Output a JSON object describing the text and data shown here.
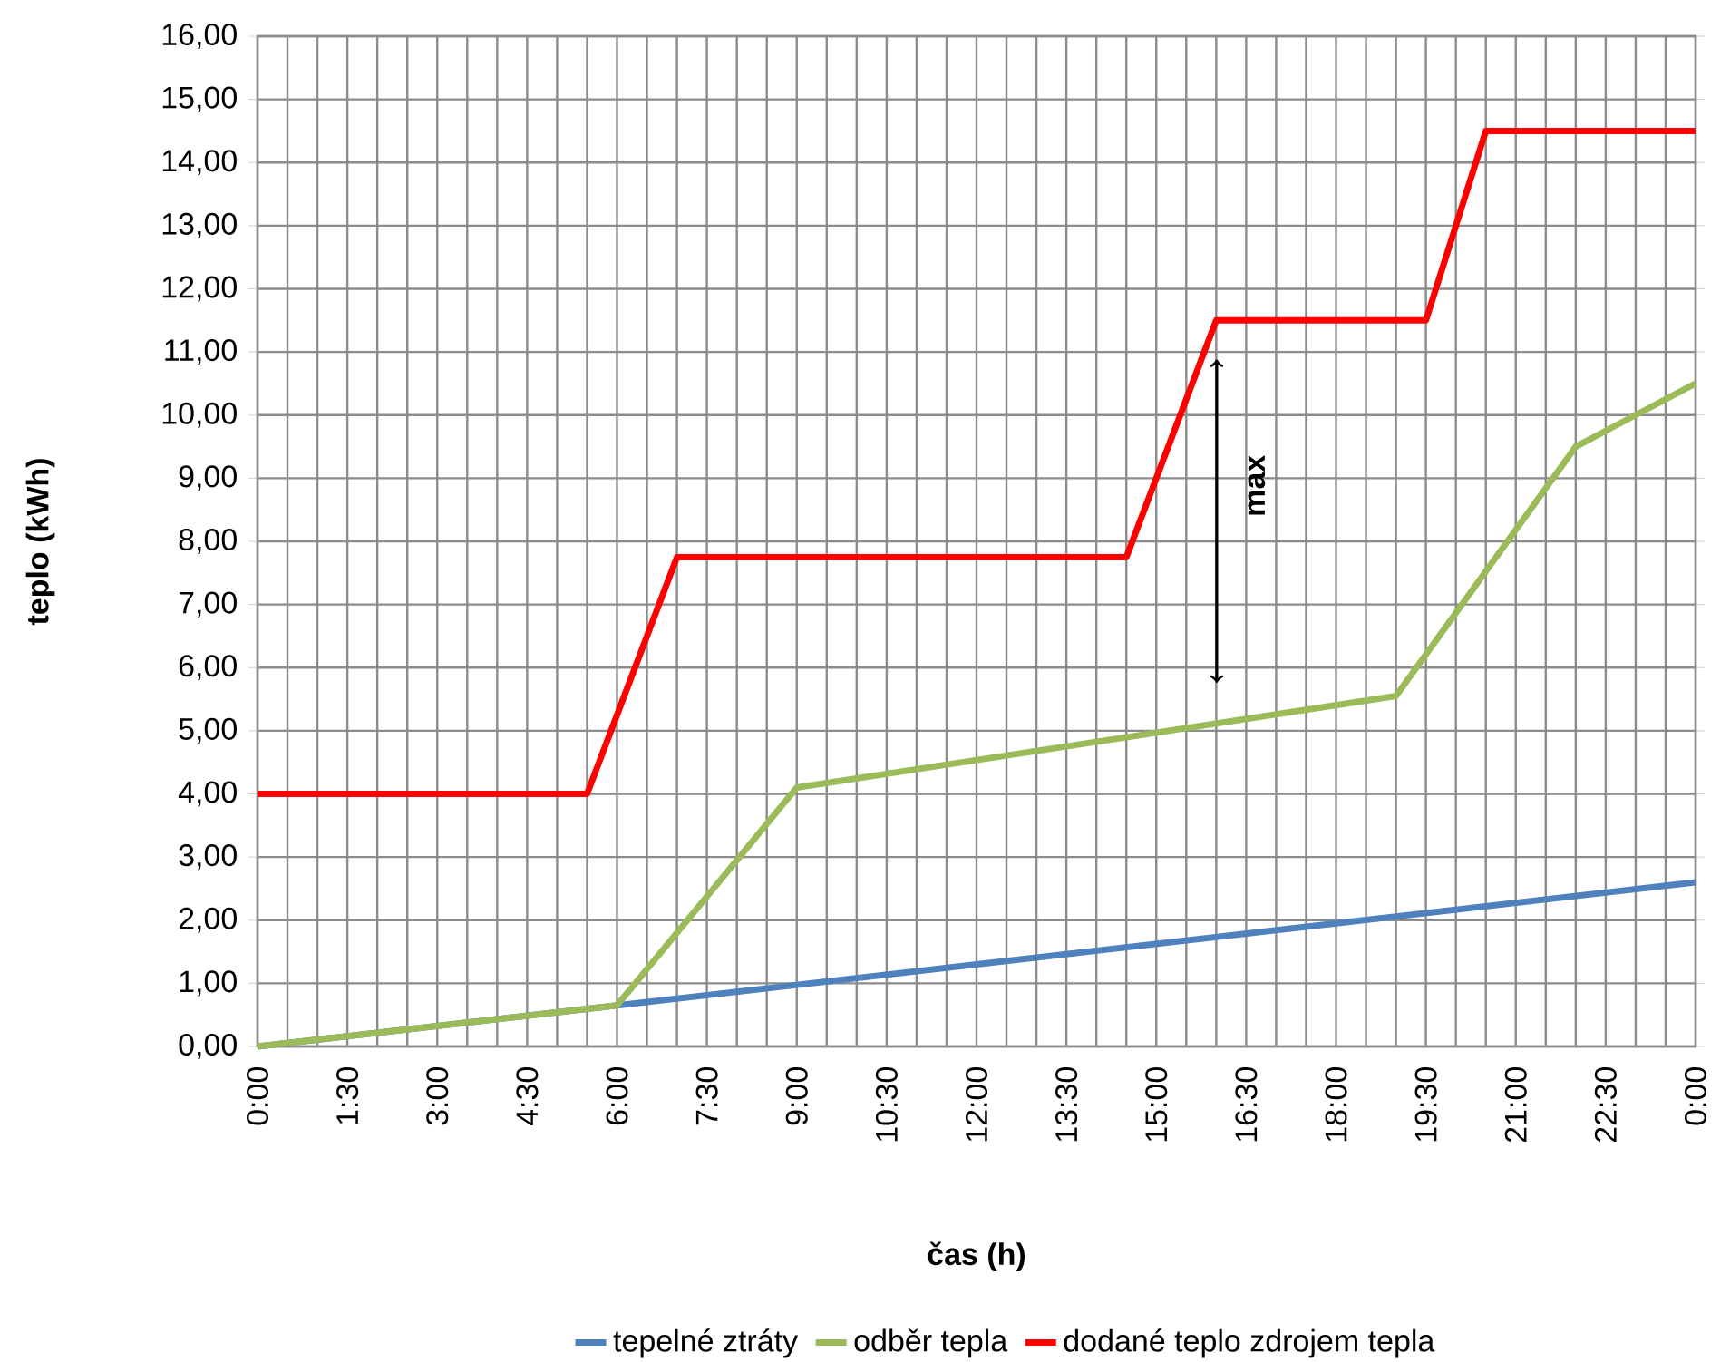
{
  "chart_data": {
    "type": "line",
    "xlabel": "čas (h)",
    "ylabel": "teplo (kWh)",
    "xlim": [
      0,
      24
    ],
    "ylim": [
      0,
      16
    ],
    "xticks": [
      {
        "value": 0,
        "label": "0:00"
      },
      {
        "value": 0.5,
        "label": null
      },
      {
        "value": 1,
        "label": null
      },
      {
        "value": 1.5,
        "label": "1:30"
      },
      {
        "value": 2,
        "label": null
      },
      {
        "value": 2.5,
        "label": null
      },
      {
        "value": 3,
        "label": "3:00"
      },
      {
        "value": 3.5,
        "label": null
      },
      {
        "value": 4,
        "label": null
      },
      {
        "value": 4.5,
        "label": "4:30"
      },
      {
        "value": 5,
        "label": null
      },
      {
        "value": 5.5,
        "label": null
      },
      {
        "value": 6,
        "label": "6:00"
      },
      {
        "value": 6.5,
        "label": null
      },
      {
        "value": 7,
        "label": null
      },
      {
        "value": 7.5,
        "label": "7:30"
      },
      {
        "value": 8,
        "label": null
      },
      {
        "value": 8.5,
        "label": null
      },
      {
        "value": 9,
        "label": "9:00"
      },
      {
        "value": 9.5,
        "label": null
      },
      {
        "value": 10,
        "label": null
      },
      {
        "value": 10.5,
        "label": "10:30"
      },
      {
        "value": 11,
        "label": null
      },
      {
        "value": 11.5,
        "label": null
      },
      {
        "value": 12,
        "label": "12:00"
      },
      {
        "value": 12.5,
        "label": null
      },
      {
        "value": 13,
        "label": null
      },
      {
        "value": 13.5,
        "label": "13:30"
      },
      {
        "value": 14,
        "label": null
      },
      {
        "value": 14.5,
        "label": null
      },
      {
        "value": 15,
        "label": "15:00"
      },
      {
        "value": 15.5,
        "label": null
      },
      {
        "value": 16,
        "label": null
      },
      {
        "value": 16.5,
        "label": "16:30"
      },
      {
        "value": 17,
        "label": null
      },
      {
        "value": 17.5,
        "label": null
      },
      {
        "value": 18,
        "label": "18:00"
      },
      {
        "value": 18.5,
        "label": null
      },
      {
        "value": 19,
        "label": null
      },
      {
        "value": 19.5,
        "label": "19:30"
      },
      {
        "value": 20,
        "label": null
      },
      {
        "value": 20.5,
        "label": null
      },
      {
        "value": 21,
        "label": "21:00"
      },
      {
        "value": 21.5,
        "label": null
      },
      {
        "value": 22,
        "label": null
      },
      {
        "value": 22.5,
        "label": "22:30"
      },
      {
        "value": 23,
        "label": null
      },
      {
        "value": 23.5,
        "label": null
      },
      {
        "value": 24,
        "label": "0:00"
      }
    ],
    "yticks": [
      {
        "value": 0,
        "label": "0,00"
      },
      {
        "value": 1,
        "label": "1,00"
      },
      {
        "value": 2,
        "label": "2,00"
      },
      {
        "value": 3,
        "label": "3,00"
      },
      {
        "value": 4,
        "label": "4,00"
      },
      {
        "value": 5,
        "label": "5,00"
      },
      {
        "value": 6,
        "label": "6,00"
      },
      {
        "value": 7,
        "label": "7,00"
      },
      {
        "value": 8,
        "label": "8,00"
      },
      {
        "value": 9,
        "label": "9,00"
      },
      {
        "value": 10,
        "label": "10,00"
      },
      {
        "value": 11,
        "label": "11,00"
      },
      {
        "value": 12,
        "label": "12,00"
      },
      {
        "value": 13,
        "label": "13,00"
      },
      {
        "value": 14,
        "label": "14,00"
      },
      {
        "value": 15,
        "label": "15,00"
      },
      {
        "value": 16,
        "label": "16,00"
      }
    ],
    "grid": true,
    "legend": "bottom",
    "series": [
      {
        "name": "tepelné ztráty",
        "color": "#4f81bd",
        "x": [
          0,
          6,
          12,
          18,
          24
        ],
        "values": [
          0,
          0.65,
          1.3,
          1.95,
          2.6
        ]
      },
      {
        "name": "odběr tepla",
        "color": "#9bbb59",
        "x": [
          0,
          6,
          9,
          19,
          22,
          24
        ],
        "values": [
          0,
          0.65,
          4.1,
          5.55,
          9.5,
          10.5
        ]
      },
      {
        "name": "dodané teplo zdrojem tepla",
        "color": "#ff0000",
        "x": [
          0,
          5.5,
          7,
          14.5,
          16,
          19.5,
          20.5,
          24
        ],
        "values": [
          4,
          4,
          7.75,
          7.75,
          11.5,
          11.5,
          14.5,
          14.5
        ]
      }
    ],
    "annotations": [
      "max"
    ]
  }
}
